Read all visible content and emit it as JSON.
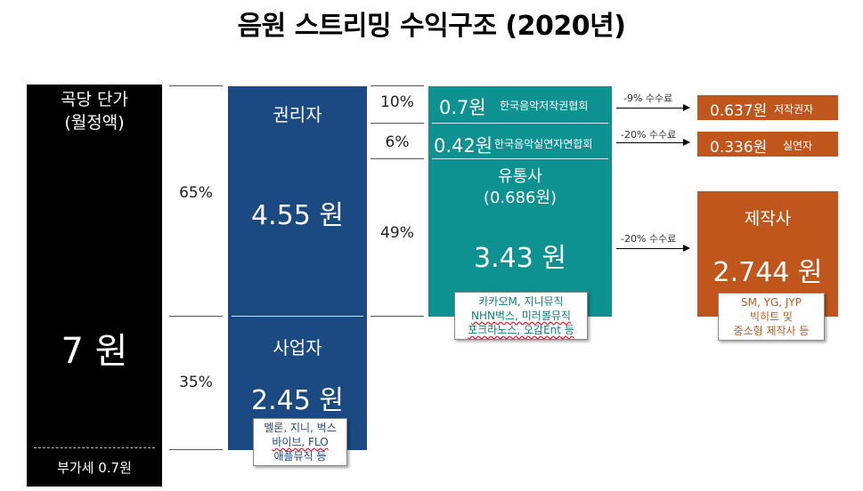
{
  "title": "음원 스트리밍 수익구조 (2020년)",
  "base": {
    "label_line1": "곡당 단가",
    "label_line2": "(월정액)",
    "amount": "7 원",
    "vat": "부가세 0.7원"
  },
  "split": {
    "rights_pct": "65%",
    "business_pct": "35%"
  },
  "rights_holder": {
    "label": "권리자",
    "amount": "4.55 원"
  },
  "business": {
    "label": "사업자",
    "amount": "2.45 원",
    "note_line1": "멜론, 지니, 벅스",
    "note_line2": "바이브, FLO",
    "note_line3": "애플뮤직 등"
  },
  "rights_split": {
    "pct1": "10%",
    "pct2": "6%",
    "pct3": "49%"
  },
  "distribution": {
    "row1_amount": "0.7원",
    "row1_org": "한국음악저작권협회",
    "row2_amount": "0.42원",
    "row2_org": "한국음악실연자연합회",
    "name_line1": "유통사",
    "name_line2": "(0.686원)",
    "amount": "3.43 원",
    "note_line1": "카카오M, 지니뮤직",
    "note_line2": "NHN벅스, 미러볼뮤직",
    "note_line3": "포크라노스, 오감Ent 등"
  },
  "fees": {
    "fee1": "-9% 수수료",
    "fee2": "-20% 수수료",
    "fee3": "-20% 수수료"
  },
  "recipients": {
    "author_amount": "0.637원",
    "author_label": "저작권자",
    "performer_amount": "0.336원",
    "performer_label": "실연자",
    "producer_label": "제작사",
    "producer_amount": "2.744 원",
    "note_line1": "SM, YG, JYP",
    "note_line2": "빅히트 및",
    "note_line3": "중소형 제작사 등"
  },
  "colors": {
    "black": "#000000",
    "blue": "#1b4a82",
    "teal": "#0e9191",
    "orange": "#c0561c"
  }
}
